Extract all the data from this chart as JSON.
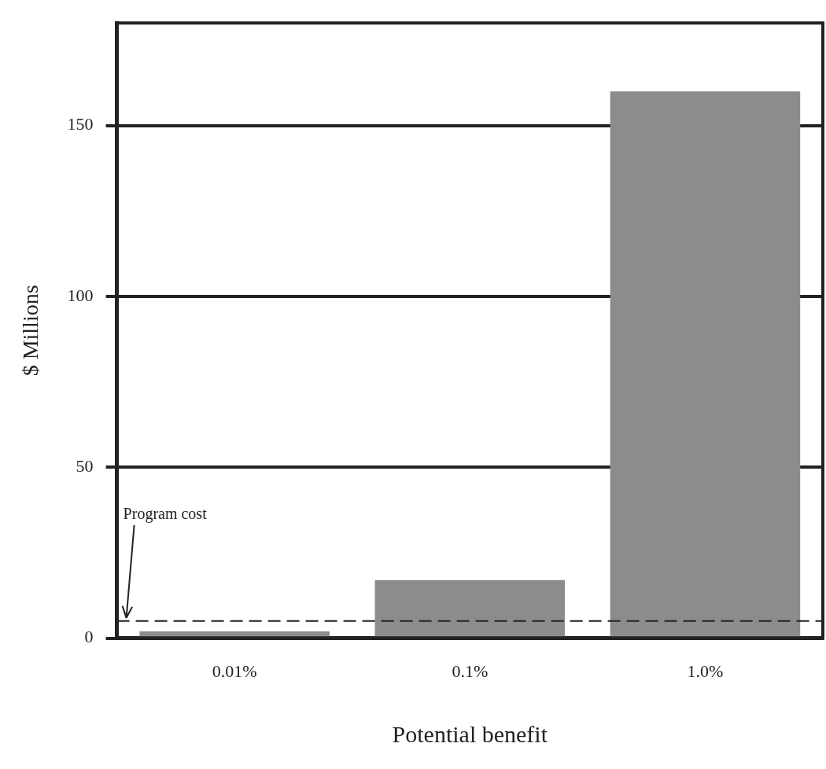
{
  "chart_data": {
    "type": "bar",
    "xlabel": "Potential benefit",
    "ylabel": "$ Millions",
    "categories": [
      "0.01%",
      "0.1%",
      "1.0%"
    ],
    "values": [
      2,
      17,
      160
    ],
    "color": "#8c8c8c",
    "ylim": [
      0,
      180
    ],
    "yticks": [
      0,
      50,
      100,
      150
    ],
    "grid": "y",
    "legend": false,
    "ref_lines": [
      {
        "axis": "y",
        "value": 5,
        "label": "Program cost",
        "line_style": "dashed",
        "color": "#222222"
      }
    ]
  }
}
